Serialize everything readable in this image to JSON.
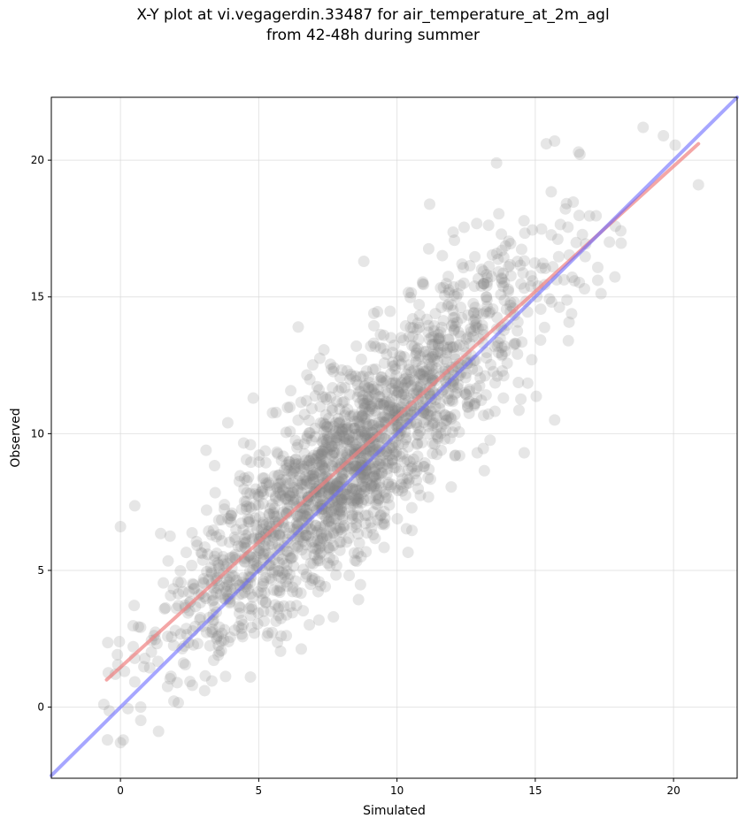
{
  "chart_data": {
    "type": "scatter",
    "title_line1": "X-Y plot at vi.vegagerdin.33487 for air_temperature_at_2m_agl",
    "title_line2": "from 42-48h during summer",
    "xlabel": "Simulated",
    "ylabel": "Observed",
    "xlim": [
      -2.5,
      22.3
    ],
    "ylim": [
      -2.6,
      22.3
    ],
    "xticks": [
      0,
      5,
      10,
      15,
      20
    ],
    "yticks": [
      0,
      5,
      10,
      15,
      20
    ],
    "grid": true,
    "point_color": "#808080",
    "point_opacity": 0.2,
    "approx_point_count": 2000,
    "point_cloud": {
      "trend_intercept": 1.3,
      "trend_slope": 0.93,
      "residual_sd": 1.75,
      "x_range": [
        -0.5,
        21.0
      ]
    },
    "sample_points": [
      {
        "x": 0.0,
        "y": 6.6
      },
      {
        "x": 4.8,
        "y": 11.3
      },
      {
        "x": 8.8,
        "y": 16.3
      },
      {
        "x": 13.6,
        "y": 19.9
      },
      {
        "x": 15.4,
        "y": 20.6
      },
      {
        "x": 15.7,
        "y": 20.7
      },
      {
        "x": 18.9,
        "y": 21.2
      },
      {
        "x": 20.9,
        "y": 19.1
      },
      {
        "x": 14.6,
        "y": 9.3
      },
      {
        "x": 15.7,
        "y": 10.5
      },
      {
        "x": 12.9,
        "y": 9.3
      },
      {
        "x": 4.7,
        "y": 1.1
      },
      {
        "x": 0.0,
        "y": -1.3
      },
      {
        "x": 0.1,
        "y": -1.2
      },
      {
        "x": -0.6,
        "y": 0.1
      },
      {
        "x": 8.7,
        "y": 5.5
      },
      {
        "x": 7.7,
        "y": 3.3
      },
      {
        "x": 2.6,
        "y": 0.8
      }
    ],
    "series": [
      {
        "type": "line",
        "color": "#f08080",
        "opacity": 0.7,
        "x": [
          -0.5,
          20.9
        ],
        "y": [
          1.0,
          20.6
        ]
      },
      {
        "type": "line",
        "color": "#6b6bff",
        "opacity": 0.6,
        "x": [
          -2.5,
          22.3
        ],
        "y": [
          -2.5,
          22.3
        ]
      }
    ]
  }
}
